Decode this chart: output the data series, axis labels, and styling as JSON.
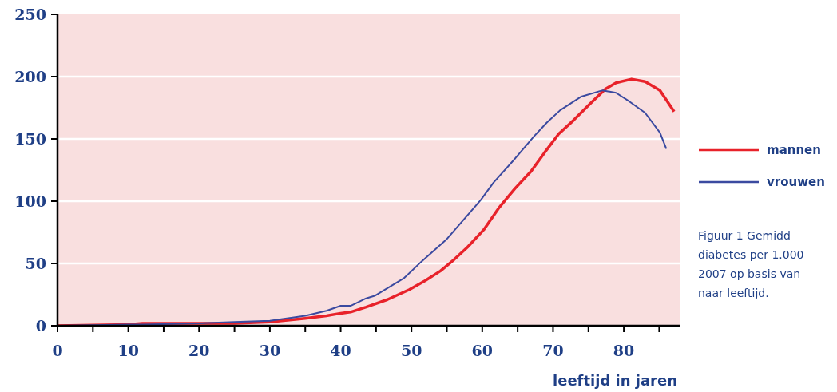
{
  "chart_data": {
    "type": "line",
    "xlabel": "leeftijd in jaren",
    "xlim": [
      0,
      88
    ],
    "xticks": [
      0,
      {
        "value": 5,
        "label": null
      },
      10,
      {
        "value": 15,
        "label": null
      },
      20,
      {
        "value": 25,
        "label": null
      },
      30,
      {
        "value": 35,
        "label": null
      },
      40,
      {
        "value": 45,
        "label": null
      },
      50,
      {
        "value": 55,
        "label": null
      },
      60,
      {
        "value": 65,
        "label": null
      },
      70,
      {
        "value": 75,
        "label": null
      },
      80,
      {
        "value": 85,
        "label": null
      }
    ],
    "ylim": [
      0,
      250
    ],
    "yticks": [
      0,
      50,
      100,
      150,
      200,
      250
    ],
    "grid": "y",
    "legend": "right",
    "line_style": "solid",
    "series": [
      {
        "name": "mannen",
        "color": "#e8222a",
        "x": [
          0,
          10,
          12,
          20,
          25,
          30,
          35,
          38,
          40,
          41.4,
          43.6,
          46.6,
          49.7,
          51.9,
          54.1,
          56,
          57.9,
          60.2,
          62.4,
          64.6,
          66.9,
          68.8,
          70.8,
          72.9,
          75.2,
          77.4,
          78.9,
          81.1,
          83,
          85.1,
          87.1
        ],
        "values": [
          0,
          1,
          2,
          2,
          2,
          3,
          6,
          8,
          10,
          11,
          15,
          21,
          29,
          36,
          44,
          53,
          63,
          77,
          95,
          110,
          124,
          139,
          154,
          165,
          178,
          190,
          195,
          198,
          196,
          189,
          172
        ]
      },
      {
        "name": "vrouwen",
        "color": "#3b4aa0",
        "x": [
          0,
          10,
          12,
          20,
          25,
          30,
          35,
          38,
          40,
          41.4,
          43.6,
          44.8,
          48.9,
          51.5,
          54.9,
          57.5,
          59.8,
          61.6,
          64.6,
          67.3,
          69.1,
          71,
          74,
          77,
          78.9,
          80.8,
          83,
          85.1,
          86
        ],
        "values": [
          0,
          1,
          1,
          2,
          3,
          4,
          8,
          12,
          16,
          16,
          22,
          24,
          38,
          52,
          69,
          86,
          101,
          115,
          134,
          152,
          163,
          173,
          184,
          189,
          187,
          180,
          171,
          155,
          142
        ]
      }
    ],
    "annotations": [
      "Figuur 1  Gemidd\ndiabetes per 1.000\n2007 op basis van\nnaar leeftijd."
    ]
  }
}
